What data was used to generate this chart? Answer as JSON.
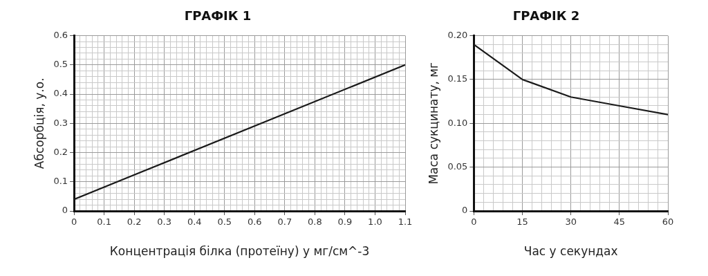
{
  "chart_data": [
    {
      "type": "line",
      "title": "ГРАФІК 1",
      "xlabel": "Концентрація білка (протеїну) у мг/см^-3",
      "ylabel": "Абсорбція, у.о.",
      "x": [
        0,
        1.1
      ],
      "series": [
        {
          "color": "#1a1a1a",
          "values": [
            0.04,
            0.5
          ]
        }
      ],
      "xlim": [
        0,
        1.1
      ],
      "ylim": [
        0,
        0.6
      ],
      "xticks": [
        0,
        {
          "value": 0.02,
          "label": null
        },
        {
          "value": 0.04,
          "label": null
        },
        {
          "value": 0.06,
          "label": null
        },
        {
          "value": 0.08,
          "label": null
        },
        0.1,
        {
          "value": 0.12,
          "label": null
        },
        {
          "value": 0.14,
          "label": null
        },
        {
          "value": 0.16,
          "label": null
        },
        {
          "value": 0.18,
          "label": null
        },
        0.2,
        {
          "value": 0.22,
          "label": null
        },
        {
          "value": 0.24,
          "label": null
        },
        {
          "value": 0.26,
          "label": null
        },
        {
          "value": 0.28,
          "label": null
        },
        0.3,
        {
          "value": 0.32,
          "label": null
        },
        {
          "value": 0.34,
          "label": null
        },
        {
          "value": 0.36,
          "label": null
        },
        {
          "value": 0.38,
          "label": null
        },
        0.4,
        {
          "value": 0.42,
          "label": null
        },
        {
          "value": 0.44,
          "label": null
        },
        {
          "value": 0.46,
          "label": null
        },
        {
          "value": 0.48,
          "label": null
        },
        0.5,
        {
          "value": 0.52,
          "label": null
        },
        {
          "value": 0.54,
          "label": null
        },
        {
          "value": 0.56,
          "label": null
        },
        {
          "value": 0.58,
          "label": null
        },
        0.6,
        {
          "value": 0.62,
          "label": null
        },
        {
          "value": 0.64,
          "label": null
        },
        {
          "value": 0.66,
          "label": null
        },
        {
          "value": 0.68,
          "label": null
        },
        0.7,
        {
          "value": 0.72,
          "label": null
        },
        {
          "value": 0.74,
          "label": null
        },
        {
          "value": 0.76,
          "label": null
        },
        {
          "value": 0.78,
          "label": null
        },
        0.8,
        {
          "value": 0.82,
          "label": null
        },
        {
          "value": 0.84,
          "label": null
        },
        {
          "value": 0.86,
          "label": null
        },
        {
          "value": 0.88,
          "label": null
        },
        0.9,
        {
          "value": 0.92,
          "label": null
        },
        {
          "value": 0.94,
          "label": null
        },
        {
          "value": 0.96,
          "label": null
        },
        {
          "value": 0.98,
          "label": null
        },
        {
          "value": 1.0,
          "label": "1.0"
        },
        {
          "value": 1.02,
          "label": null
        },
        {
          "value": 1.04,
          "label": null
        },
        {
          "value": 1.06,
          "label": null
        },
        {
          "value": 1.08,
          "label": null
        },
        1.1
      ],
      "yticks": [
        0,
        {
          "value": 0.02,
          "label": null
        },
        {
          "value": 0.04,
          "label": null
        },
        {
          "value": 0.06,
          "label": null
        },
        {
          "value": 0.08,
          "label": null
        },
        0.1,
        {
          "value": 0.12,
          "label": null
        },
        {
          "value": 0.14,
          "label": null
        },
        {
          "value": 0.16,
          "label": null
        },
        {
          "value": 0.18,
          "label": null
        },
        0.2,
        {
          "value": 0.22,
          "label": null
        },
        {
          "value": 0.24,
          "label": null
        },
        {
          "value": 0.26,
          "label": null
        },
        {
          "value": 0.28,
          "label": null
        },
        0.3,
        {
          "value": 0.32,
          "label": null
        },
        {
          "value": 0.34,
          "label": null
        },
        {
          "value": 0.36,
          "label": null
        },
        {
          "value": 0.38,
          "label": null
        },
        0.4,
        {
          "value": 0.42,
          "label": null
        },
        {
          "value": 0.44,
          "label": null
        },
        {
          "value": 0.46,
          "label": null
        },
        {
          "value": 0.48,
          "label": null
        },
        0.5,
        {
          "value": 0.52,
          "label": null
        },
        {
          "value": 0.54,
          "label": null
        },
        {
          "value": 0.56,
          "label": null
        },
        {
          "value": 0.58,
          "label": null
        },
        0.6
      ],
      "grid": true,
      "legend": false,
      "marker": "none",
      "line_style": "solid"
    },
    {
      "type": "line",
      "title": "ГРАФІК 2",
      "xlabel": "Час у секундах",
      "ylabel": "Маса сукцинату, мг",
      "x": [
        0,
        15,
        30,
        45,
        60
      ],
      "series": [
        {
          "color": "#1a1a1a",
          "values": [
            0.19,
            0.15,
            0.13,
            0.12,
            0.11
          ]
        }
      ],
      "xlim": [
        0,
        60
      ],
      "ylim": [
        0,
        0.2
      ],
      "xticks": [
        0,
        {
          "value": 3,
          "label": null
        },
        {
          "value": 6,
          "label": null
        },
        {
          "value": 9,
          "label": null
        },
        {
          "value": 12,
          "label": null
        },
        15,
        {
          "value": 18,
          "label": null
        },
        {
          "value": 21,
          "label": null
        },
        {
          "value": 24,
          "label": null
        },
        {
          "value": 27,
          "label": null
        },
        30,
        {
          "value": 33,
          "label": null
        },
        {
          "value": 36,
          "label": null
        },
        {
          "value": 39,
          "label": null
        },
        {
          "value": 42,
          "label": null
        },
        45,
        {
          "value": 48,
          "label": null
        },
        {
          "value": 51,
          "label": null
        },
        {
          "value": 54,
          "label": null
        },
        {
          "value": 57,
          "label": null
        },
        60
      ],
      "yticks": [
        0,
        {
          "value": 0.01,
          "label": null
        },
        {
          "value": 0.02,
          "label": null
        },
        {
          "value": 0.03,
          "label": null
        },
        {
          "value": 0.04,
          "label": null
        },
        0.05,
        {
          "value": 0.06,
          "label": null
        },
        {
          "value": 0.07,
          "label": null
        },
        {
          "value": 0.08,
          "label": null
        },
        {
          "value": 0.09,
          "label": null
        },
        {
          "value": 0.1,
          "label": "0.10"
        },
        {
          "value": 0.11,
          "label": null
        },
        {
          "value": 0.12,
          "label": null
        },
        {
          "value": 0.13,
          "label": null
        },
        {
          "value": 0.14,
          "label": null
        },
        0.15,
        {
          "value": 0.16,
          "label": null
        },
        {
          "value": 0.17,
          "label": null
        },
        {
          "value": 0.18,
          "label": null
        },
        {
          "value": 0.19,
          "label": null
        },
        {
          "value": 0.2,
          "label": "0.20"
        }
      ],
      "grid": true,
      "legend": false,
      "marker": "none",
      "line_style": "solid"
    }
  ]
}
